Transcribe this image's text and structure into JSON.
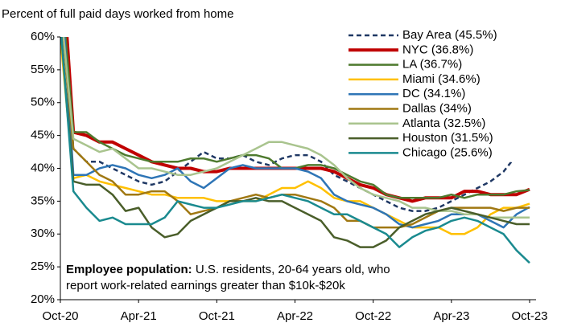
{
  "chart_data": {
    "type": "line",
    "subtitle": "Percent of full paid days worked from home",
    "categories": [
      "Oct-20",
      null,
      null,
      null,
      null,
      null,
      "Apr-21",
      null,
      null,
      null,
      null,
      null,
      "Oct-21",
      null,
      null,
      null,
      null,
      null,
      "Apr-22",
      null,
      null,
      null,
      null,
      null,
      "Oct-22",
      null,
      null,
      null,
      null,
      null,
      "Apr-23",
      null,
      null,
      null,
      null,
      null,
      "Oct-23"
    ],
    "ylim": [
      20,
      60
    ],
    "yticks": [
      {
        "value": 20,
        "label": "20%"
      },
      {
        "value": 25,
        "label": "25%"
      },
      {
        "value": 30,
        "label": "30%"
      },
      {
        "value": 35,
        "label": "35%"
      },
      {
        "value": 40,
        "label": "40%"
      },
      {
        "value": 45,
        "label": "45%"
      },
      {
        "value": 50,
        "label": "50%"
      },
      {
        "value": 55,
        "label": "55%"
      },
      {
        "value": 60,
        "label": "60%"
      }
    ],
    "grid": false,
    "legend": "top-right",
    "annotation": {
      "label": "Employee population:",
      "lines": [
        "U.S. residents, 20-64 years old, who",
        "report work-related earnings greater than $10k-$20k"
      ]
    },
    "series": [
      {
        "name": "Bay Area (45.5%)",
        "color": "#1f3864",
        "dashed": true,
        "values": [
          70,
          43,
          41,
          41,
          40,
          39,
          38,
          37.5,
          38,
          39.5,
          41,
          42.5,
          41.5,
          41.5,
          42,
          41,
          40.5,
          41.5,
          42,
          42,
          41,
          39,
          38,
          37,
          36,
          35,
          34,
          33.5,
          33.5,
          34,
          35,
          36,
          37,
          38,
          39.5,
          42,
          45.5
        ]
      },
      {
        "name": "NYC (36.8%)",
        "color": "#c00000",
        "width": 4,
        "values": [
          75,
          45.5,
          45,
          44,
          44,
          43,
          42,
          41,
          40.5,
          40,
          40,
          39.5,
          39.5,
          40,
          40,
          40,
          40,
          40,
          40,
          40,
          40,
          39.5,
          38.5,
          37.5,
          37,
          36,
          35.5,
          35,
          35.5,
          35.5,
          35.5,
          36.5,
          36.5,
          36,
          36,
          36,
          36.8
        ]
      },
      {
        "name": "LA (36.7%)",
        "color": "#4e7a2e",
        "values": [
          70,
          45.5,
          45.5,
          44,
          43,
          42,
          41.5,
          41,
          41,
          41,
          41.5,
          41.5,
          41,
          41.5,
          42,
          42,
          41.5,
          40,
          40,
          40.5,
          40.5,
          40,
          39,
          38,
          37.5,
          36,
          35.5,
          35.5,
          35.5,
          35.5,
          36,
          35.5,
          36,
          36,
          36,
          36.5,
          36.7
        ]
      },
      {
        "name": "Miami (34.6%)",
        "color": "#ffc000",
        "values": [
          60,
          38.5,
          39,
          38,
          37.5,
          37,
          36.5,
          36,
          36,
          35.5,
          35.5,
          35.5,
          35,
          35,
          35,
          35,
          36,
          37,
          37,
          38,
          37,
          35.5,
          35,
          35,
          34,
          33,
          32,
          31,
          31,
          31,
          30,
          30,
          31,
          33,
          34,
          34,
          34.6
        ]
      },
      {
        "name": "DC (34.1%)",
        "color": "#2e75b6",
        "values": [
          70,
          39,
          39,
          40,
          40.5,
          40,
          39,
          38.5,
          39,
          40,
          38,
          37,
          38.5,
          40,
          40.5,
          40,
          40,
          40,
          40,
          39.5,
          38.5,
          36,
          35,
          34.5,
          34,
          33,
          31.5,
          31,
          31.5,
          32,
          33,
          33,
          33,
          32,
          31,
          33,
          34.1
        ]
      },
      {
        "name": "Dallas (34%)",
        "color": "#a07812",
        "values": [
          65,
          43,
          41,
          39,
          38,
          36,
          36,
          36.5,
          36.5,
          35,
          33,
          33.5,
          34,
          35,
          35.5,
          36,
          35.5,
          36,
          36,
          35.5,
          35,
          34,
          32,
          32,
          31,
          31,
          31,
          31.5,
          32.5,
          33.5,
          34,
          34,
          34,
          34,
          33.5,
          34,
          34
        ]
      },
      {
        "name": "Atlanta (32.5%)",
        "color": "#a9c48e",
        "values": [
          65,
          44.5,
          43.5,
          42.5,
          43,
          41.5,
          40,
          40,
          39.5,
          39,
          39,
          39.5,
          40,
          41,
          42,
          43,
          44,
          44,
          43.5,
          43,
          42,
          40.5,
          38.5,
          37,
          36,
          35.5,
          35,
          34,
          34,
          33.5,
          33.5,
          33,
          33,
          32.5,
          32.5,
          32.5,
          32.5
        ]
      },
      {
        "name": "Houston (31.5%)",
        "color": "#4a5e2a",
        "values": [
          62,
          38,
          37.5,
          37.5,
          36,
          33.5,
          34,
          31,
          29.5,
          30,
          32,
          33,
          34,
          35,
          35,
          35.5,
          35,
          35,
          34,
          33,
          32,
          29.5,
          29,
          28,
          28,
          29,
          31,
          32,
          33,
          33.5,
          34,
          33.5,
          33,
          32.5,
          32,
          31.5,
          31.5
        ]
      },
      {
        "name": "Chicago (25.6%)",
        "color": "#1a8a8f",
        "values": [
          62,
          36.5,
          34,
          32,
          32.5,
          31.5,
          31.5,
          31.5,
          32.5,
          35,
          34.5,
          34,
          34,
          34.5,
          35,
          35,
          35.5,
          36,
          35.5,
          35,
          34,
          33,
          33,
          32,
          31,
          30,
          28,
          29.5,
          30.5,
          31,
          32,
          32.5,
          32,
          31,
          30,
          27.5,
          25.6
        ]
      }
    ]
  }
}
